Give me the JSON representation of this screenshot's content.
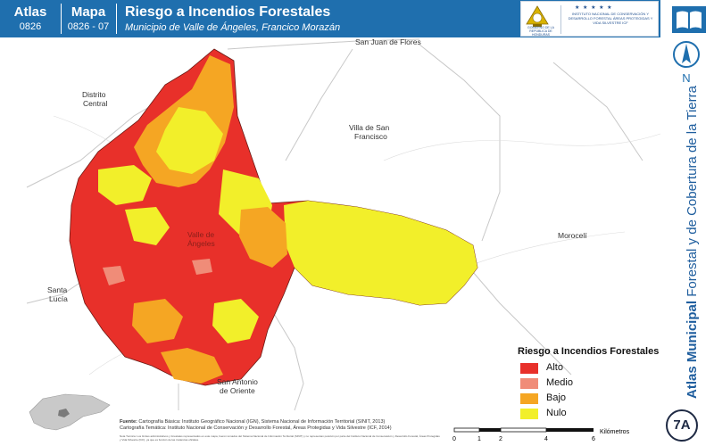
{
  "header": {
    "atlas_label": "Atlas",
    "atlas_code": "0826",
    "mapa_label": "Mapa",
    "mapa_code": "0826 - 07",
    "title": "Riesgo a Incendios Forestales",
    "subtitle": "Municipio de Valle de Ángeles, Francico Morazán",
    "logo_gov_text": "GOBIERNO DE LA REPÚBLICA DE HONDURAS",
    "logo_stars": "★ ★ ★ ★ ★",
    "logo_institute_text": "INSTITUTO NACIONAL DE CONSERVACIÓN Y DESARROLLO FORESTAL ÁREAS PROTEGIDAS Y VIDA SILVESTRE ICF"
  },
  "side": {
    "north_label": "N",
    "atlas_word": "Atlas Municipal",
    "atlas_rest": "Forestal y de Cobertura de la Tierra",
    "badge": "7A"
  },
  "places": {
    "san_juan": "San Juan de Flores",
    "distrito_central_1": "Distrito",
    "distrito_central_2": "Central",
    "villa_1": "Villa de San",
    "villa_2": "Francisco",
    "moroceli": "Morocelí",
    "santa_lucia_1": "Santa",
    "santa_lucia_2": "Lucía",
    "valle_1": "Valle de",
    "valle_2": "Ángeles",
    "san_antonio_1": "San Antonio",
    "san_antonio_2": "de Oriente"
  },
  "legend": {
    "title": "Riesgo a Incendios Forestales",
    "items": [
      {
        "label": "Alto",
        "color": "#e8302a"
      },
      {
        "label": "Medio",
        "color": "#f08c78"
      },
      {
        "label": "Bajo",
        "color": "#f5a623"
      },
      {
        "label": "Nulo",
        "color": "#f2ef2a"
      }
    ]
  },
  "source": {
    "heading": "Fuente:",
    "line1": "Cartografía Básica: Instituto Geográfico Nacional (IGN), Sistema Nacional de Información Territorial (SINIT, 2013)",
    "line2": "Cartografía Temática: Instituto Nacional de Conservación y Desarrollo Forestal, Áreas Protegidas y Vida Silvestre (ICF, 2014)",
    "notes": "Nota Técnica: Los límites administrativos y forestales representados en este mapa, fueron tomados del Sistema Nacional de Información Territorial (SINIT) y no representan posición por parte del Instituto Nacional de Conservación y Desarrollo Forestal, Áreas Protegidas y Vida Silvestre (ICF), ya que es función de las instancias oficiales."
  },
  "scale": {
    "ticks": [
      "0",
      "1",
      "2",
      "4",
      "6"
    ],
    "unit": "Kilómetros"
  },
  "colors": {
    "header_blue": "#1f6fae",
    "alto": "#e8302a",
    "bajo": "#f5a623",
    "nulo": "#f2ef2a"
  }
}
